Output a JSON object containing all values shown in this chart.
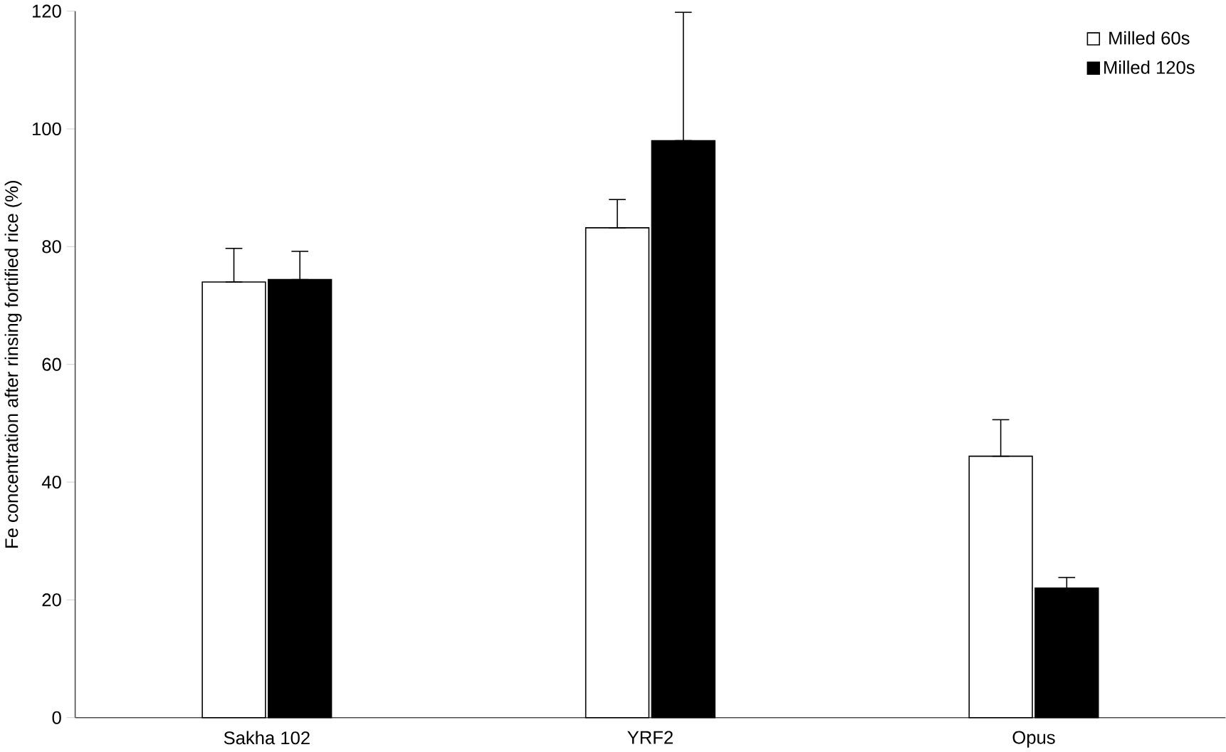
{
  "chart_data": {
    "type": "bar",
    "ylabel": "Fe concentration after rinsing fortified rice (%)",
    "categories": [
      "Sakha 102",
      "YRF2",
      "Opus"
    ],
    "series": [
      {
        "name": "Milled 60s",
        "color": "#ffffff",
        "values": [
          74,
          83.2,
          44.4
        ],
        "errors": [
          [
            74,
            79.7
          ],
          [
            83.2,
            88
          ],
          [
            44.4,
            50.6
          ]
        ]
      },
      {
        "name": "Milled 120s",
        "color": "#000000",
        "values": [
          74.4,
          98,
          22
        ],
        "errors": [
          [
            74.4,
            79.2
          ],
          [
            98,
            119.8
          ],
          [
            22,
            23.8
          ]
        ]
      }
    ],
    "ylim": [
      0,
      120
    ],
    "yticks": [
      0,
      20,
      40,
      60,
      80,
      100,
      120
    ],
    "grid": false,
    "legend": "top right"
  }
}
